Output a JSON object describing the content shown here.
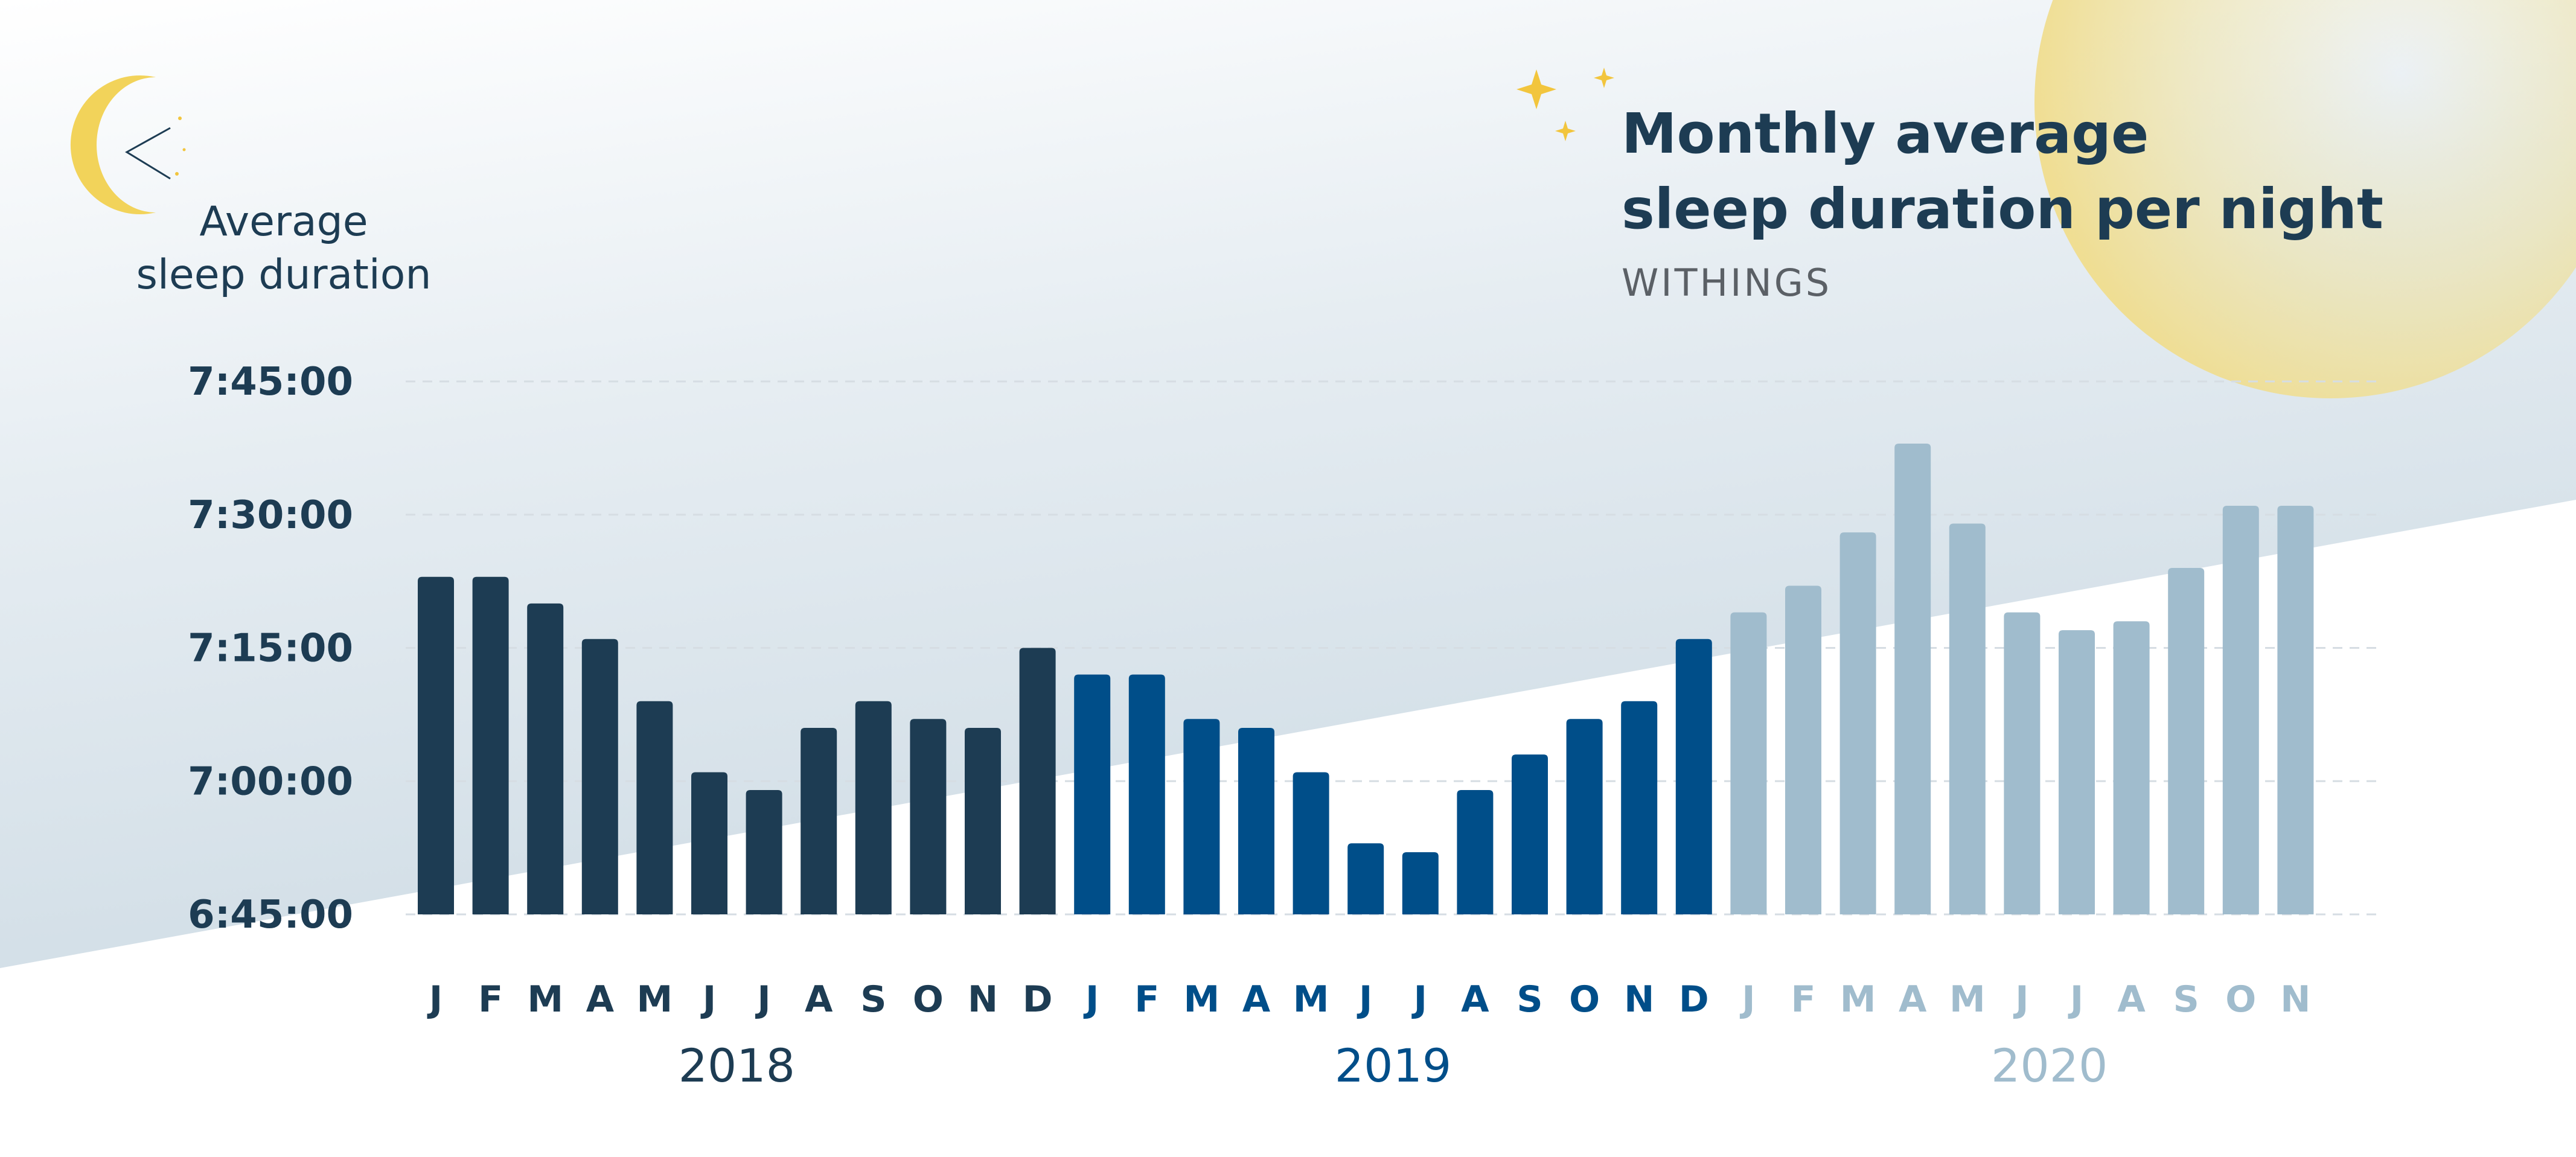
{
  "header": {
    "title_line1": "Monthly average",
    "title_line2": "sleep duration per night",
    "source": "WITHINGS"
  },
  "axis": {
    "ylabel_line1": "Average",
    "ylabel_line2": "sleep duration"
  },
  "colors": {
    "y2018": "#1d3c53",
    "y2019": "#004e89",
    "y2020": "#a0bccd",
    "moon": "#f2d35a",
    "star": "#f2c53d",
    "sky_top": "#ffffff",
    "sky_bottom": "#d3dfe7"
  },
  "icons": {
    "moon": "crescent-moon-icon",
    "stars": "sparkle-stars-icon",
    "sun": "sun-glow-icon"
  },
  "chart_data": {
    "type": "bar",
    "title": "Monthly average sleep duration per night",
    "subtitle": "WITHINGS",
    "ylabel": "Average sleep duration",
    "xlabel": "",
    "yunit": "h:mm:ss",
    "ylim": [
      "6:45:00",
      "7:45:00"
    ],
    "yticks": [
      "6:45:00",
      "7:00:00",
      "7:15:00",
      "7:30:00",
      "7:45:00"
    ],
    "grid": true,
    "legend": "none",
    "groups": [
      {
        "name": "2018",
        "color": "#1d3c53",
        "months": [
          "J",
          "F",
          "M",
          "A",
          "M",
          "J",
          "J",
          "A",
          "S",
          "O",
          "N",
          "D"
        ],
        "values": [
          "7:23:00",
          "7:23:00",
          "7:20:00",
          "7:16:00",
          "7:09:00",
          "7:01:00",
          "6:59:00",
          "7:06:00",
          "7:09:00",
          "7:07:00",
          "7:06:00",
          "7:15:00"
        ]
      },
      {
        "name": "2019",
        "color": "#004e89",
        "months": [
          "J",
          "F",
          "M",
          "A",
          "M",
          "J",
          "J",
          "A",
          "S",
          "O",
          "N",
          "D"
        ],
        "values": [
          "7:12:00",
          "7:12:00",
          "7:07:00",
          "7:06:00",
          "7:01:00",
          "6:53:00",
          "6:52:00",
          "6:59:00",
          "7:03:00",
          "7:07:00",
          "7:09:00",
          "7:16:00"
        ]
      },
      {
        "name": "2020",
        "color": "#a0bccd",
        "months": [
          "J",
          "F",
          "M",
          "A",
          "M",
          "J",
          "J",
          "A",
          "S",
          "O",
          "N"
        ],
        "values": [
          "7:19:00",
          "7:22:00",
          "7:28:00",
          "7:38:00",
          "7:29:00",
          "7:19:00",
          "7:17:00",
          "7:18:00",
          "7:24:00",
          "7:31:00",
          "7:31:00"
        ]
      }
    ]
  }
}
